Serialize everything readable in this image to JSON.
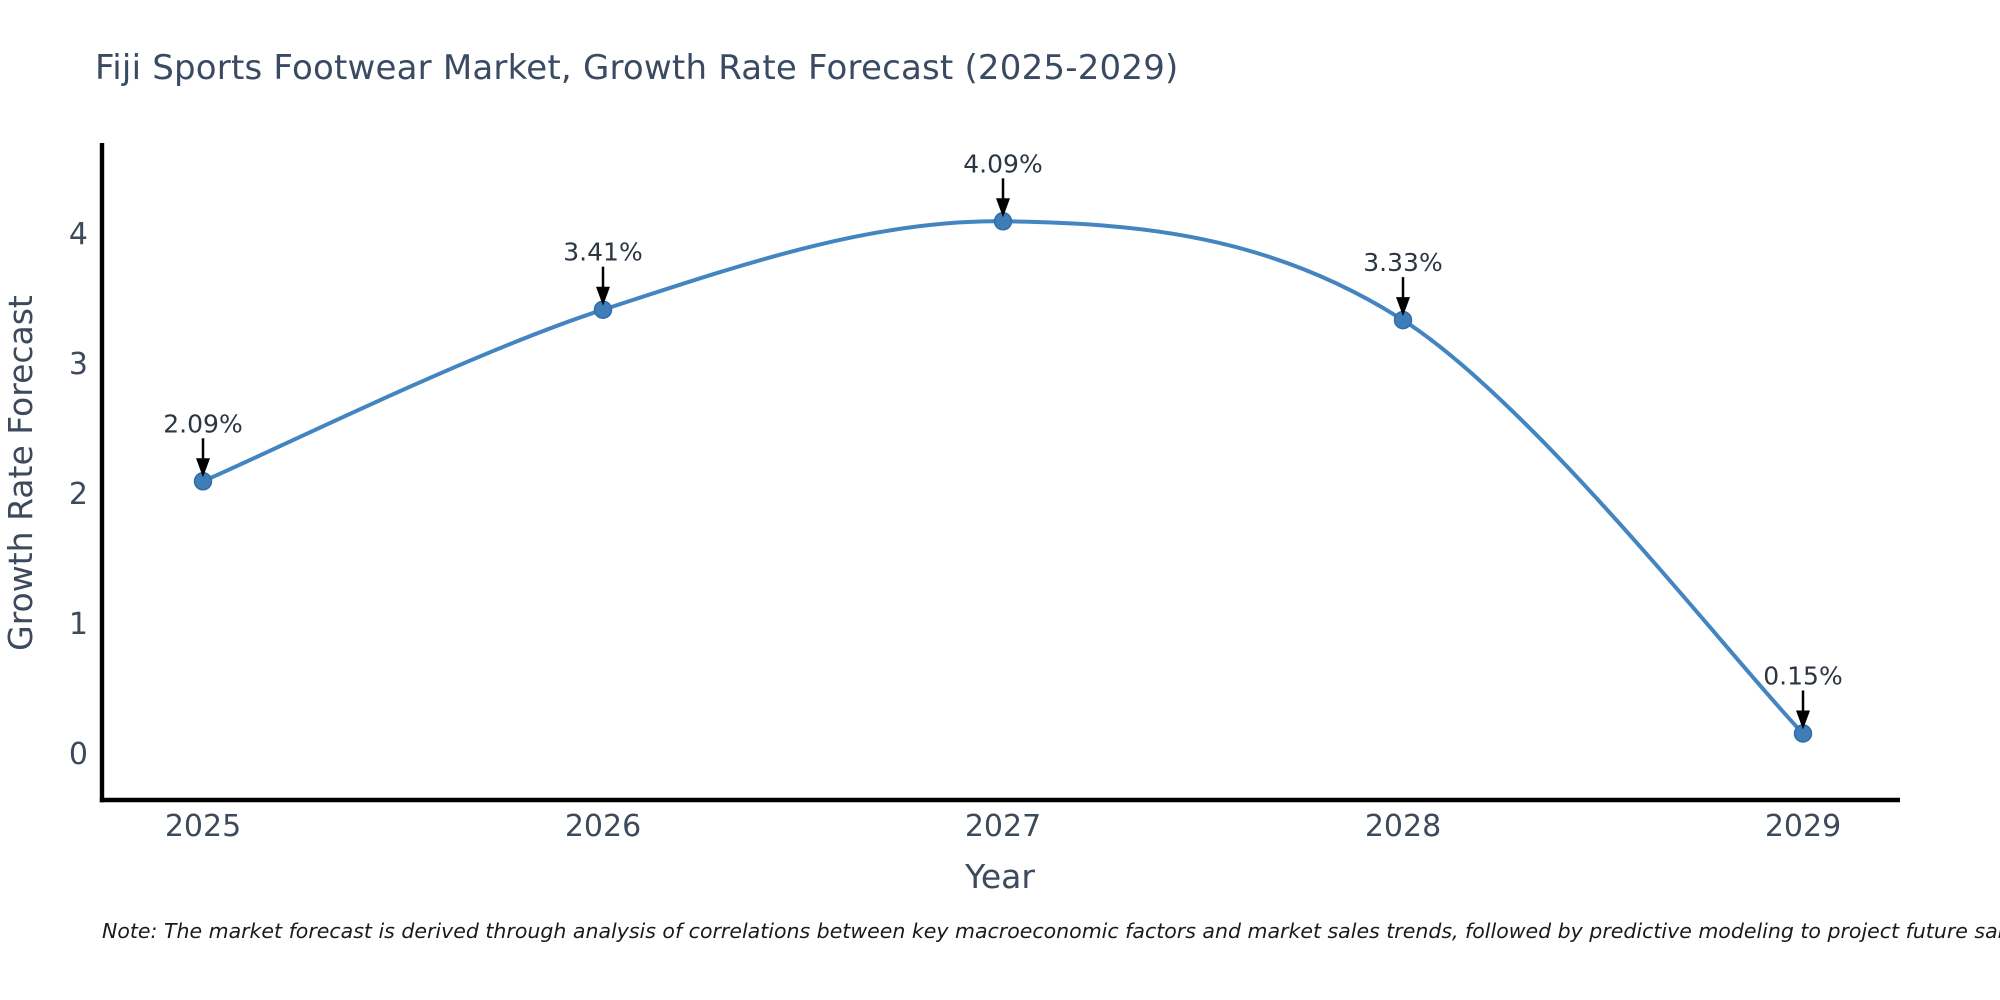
{
  "title": "Fiji Sports Footwear Market, Growth Rate Forecast (2025-2029)",
  "note": "Note: The market forecast is derived through analysis of correlations between key macroeconomic factors and market sales trends, followed by predictive modeling to project future sales.",
  "chart_data": {
    "type": "line",
    "title": "Fiji Sports Footwear Market, Growth Rate Forecast (2025-2029)",
    "x": [
      2025,
      2026,
      2027,
      2028,
      2029
    ],
    "series": [
      {
        "name": "Growth Rate Forecast",
        "values": [
          2.09,
          3.41,
          4.09,
          3.33,
          0.15
        ]
      }
    ],
    "annotations": [
      "2.09%",
      "3.41%",
      "4.09%",
      "3.33%",
      "0.15%"
    ],
    "xlabel": "Year",
    "ylabel": "Growth Rate Forecast",
    "yticks": [
      0,
      1,
      2,
      3,
      4
    ],
    "xticks": [
      "2025",
      "2026",
      "2027",
      "2028",
      "2029"
    ],
    "ylim": [
      -0.36,
      4.65
    ],
    "xlim": [
      2024.74,
      2029.26
    ],
    "grid": false,
    "legend": "none",
    "line_smooth": true,
    "line_color": "#4285c0",
    "marker_color": "#3d7db8",
    "marker_edge_color": "#316da6",
    "axis_color": "#000000",
    "tick_color": "#3d4a5c",
    "label_color": "#3d4a5c",
    "annotation_color": "#2c3643",
    "arrow_color": "#000000"
  }
}
